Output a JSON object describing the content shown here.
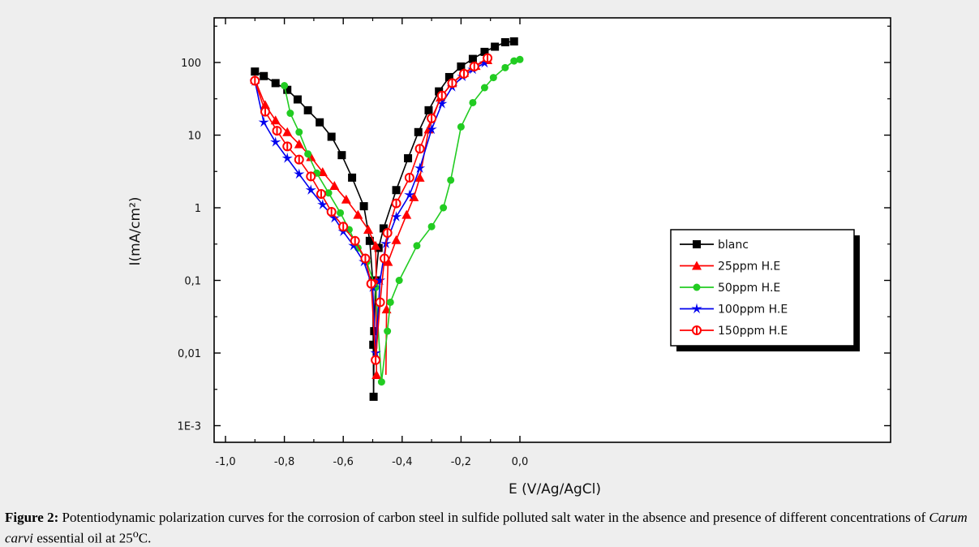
{
  "caption": {
    "label": "Figure 2:",
    "text_1": " Potentiodynamic polarization curves for the corrosion of carbon steel in sulfide polluted salt water in the absence and presence of different concentrations of ",
    "italic": "Carum carvi",
    "text_2": " essential oil at 25",
    "superscript": "o",
    "text_3": "C."
  },
  "chart_data": {
    "type": "line",
    "xlabel": "E (V/Ag/AgCl)",
    "ylabel": "I(mA/cm²)",
    "xlim": [
      -1.0,
      0.05
    ],
    "ylim": [
      0.0005,
      400
    ],
    "yscale": "log",
    "x_ticks": [
      -1.0,
      -0.8,
      -0.6,
      -0.4,
      -0.2,
      0.0
    ],
    "x_tick_labels": [
      "-1,0",
      "-0,8",
      "-0,6",
      "-0,4",
      "-0,2",
      "0,0"
    ],
    "y_ticks": [
      0.001,
      0.01,
      0.1,
      1,
      10,
      100
    ],
    "y_tick_labels": [
      "1E-3",
      "0,01",
      "0,1",
      "1",
      "10",
      "100"
    ],
    "legend_position": "right",
    "series": [
      {
        "name": "blanc",
        "color": "#000000",
        "marker": "square",
        "cathodic": [
          [
            -0.9,
            75
          ],
          [
            -0.87,
            65
          ],
          [
            -0.83,
            52
          ],
          [
            -0.79,
            42
          ],
          [
            -0.755,
            31
          ],
          [
            -0.72,
            22
          ],
          [
            -0.68,
            15
          ],
          [
            -0.64,
            9.5
          ],
          [
            -0.605,
            5.3
          ],
          [
            -0.57,
            2.6
          ],
          [
            -0.53,
            1.05
          ],
          [
            -0.51,
            0.35
          ],
          [
            -0.5,
            0.1
          ],
          [
            -0.498,
            0.013
          ],
          [
            -0.497,
            0.0025
          ]
        ],
        "anodic": [
          [
            -0.497,
            0.0025
          ],
          [
            -0.495,
            0.02
          ],
          [
            -0.49,
            0.1
          ],
          [
            -0.48,
            0.28
          ],
          [
            -0.463,
            0.52
          ],
          [
            -0.42,
            1.75
          ],
          [
            -0.38,
            4.8
          ],
          [
            -0.345,
            11
          ],
          [
            -0.31,
            22
          ],
          [
            -0.275,
            40
          ],
          [
            -0.24,
            63
          ],
          [
            -0.2,
            88
          ],
          [
            -0.16,
            112
          ],
          [
            -0.12,
            140
          ],
          [
            -0.085,
            165
          ],
          [
            -0.05,
            190
          ],
          [
            -0.02,
            195
          ]
        ]
      },
      {
        "name": "25ppm H.E",
        "color": "#ff0000",
        "marker": "triangle",
        "cathodic": [
          [
            -0.9,
            58
          ],
          [
            -0.865,
            26
          ],
          [
            -0.83,
            16
          ],
          [
            -0.79,
            11
          ],
          [
            -0.75,
            7.5
          ],
          [
            -0.71,
            5
          ],
          [
            -0.67,
            3.1
          ],
          [
            -0.63,
            2
          ],
          [
            -0.59,
            1.3
          ],
          [
            -0.55,
            0.8
          ],
          [
            -0.515,
            0.5
          ],
          [
            -0.49,
            0.3
          ],
          [
            -0.488,
            0.1
          ],
          [
            -0.487,
            0.005
          ]
        ],
        "anodic": [
          [
            -0.455,
            0.005
          ],
          [
            -0.453,
            0.04
          ],
          [
            -0.448,
            0.18
          ],
          [
            -0.42,
            0.36
          ],
          [
            -0.385,
            0.8
          ],
          [
            -0.36,
            1.4
          ],
          [
            -0.34,
            2.6
          ],
          [
            -0.31,
            12
          ],
          [
            -0.27,
            33
          ],
          [
            -0.23,
            52
          ],
          [
            -0.19,
            72
          ],
          [
            -0.15,
            90
          ],
          [
            -0.11,
            108
          ]
        ]
      },
      {
        "name": "50ppm H.E",
        "color": "#22cc22",
        "marker": "diamond",
        "cathodic": [
          [
            -0.8,
            48
          ],
          [
            -0.78,
            20
          ],
          [
            -0.75,
            11
          ],
          [
            -0.72,
            5.5
          ],
          [
            -0.69,
            3
          ],
          [
            -0.65,
            1.6
          ],
          [
            -0.61,
            0.85
          ],
          [
            -0.58,
            0.5
          ],
          [
            -0.55,
            0.28
          ],
          [
            -0.52,
            0.18
          ],
          [
            -0.49,
            0.08
          ],
          [
            -0.47,
            0.004
          ]
        ],
        "anodic": [
          [
            -0.47,
            0.004
          ],
          [
            -0.45,
            0.02
          ],
          [
            -0.44,
            0.05
          ],
          [
            -0.41,
            0.1
          ],
          [
            -0.35,
            0.3
          ],
          [
            -0.3,
            0.55
          ],
          [
            -0.26,
            1
          ],
          [
            -0.235,
            2.4
          ],
          [
            -0.2,
            13
          ],
          [
            -0.16,
            28
          ],
          [
            -0.12,
            45
          ],
          [
            -0.09,
            62
          ],
          [
            -0.05,
            85
          ],
          [
            -0.02,
            105
          ],
          [
            0.0,
            110
          ]
        ]
      },
      {
        "name": "100ppm H.E",
        "color": "#0000ee",
        "marker": "star",
        "cathodic": [
          [
            -0.9,
            55
          ],
          [
            -0.87,
            15
          ],
          [
            -0.83,
            8
          ],
          [
            -0.79,
            4.8
          ],
          [
            -0.75,
            2.9
          ],
          [
            -0.71,
            1.75
          ],
          [
            -0.67,
            1.1
          ],
          [
            -0.63,
            0.72
          ],
          [
            -0.6,
            0.47
          ],
          [
            -0.565,
            0.3
          ],
          [
            -0.53,
            0.18
          ],
          [
            -0.5,
            0.08
          ],
          [
            -0.49,
            0.01
          ]
        ],
        "anodic": [
          [
            -0.49,
            0.01
          ],
          [
            -0.475,
            0.1
          ],
          [
            -0.455,
            0.32
          ],
          [
            -0.42,
            0.75
          ],
          [
            -0.375,
            1.5
          ],
          [
            -0.34,
            3.5
          ],
          [
            -0.3,
            12
          ],
          [
            -0.265,
            27
          ],
          [
            -0.23,
            46
          ],
          [
            -0.195,
            64
          ],
          [
            -0.16,
            80
          ],
          [
            -0.12,
            98
          ]
        ]
      },
      {
        "name": "150ppm H.E",
        "color": "#ff0000",
        "marker": "circle-half",
        "cathodic": [
          [
            -0.9,
            56
          ],
          [
            -0.865,
            21
          ],
          [
            -0.825,
            11.5
          ],
          [
            -0.79,
            7
          ],
          [
            -0.75,
            4.6
          ],
          [
            -0.71,
            2.7
          ],
          [
            -0.675,
            1.55
          ],
          [
            -0.64,
            0.88
          ],
          [
            -0.6,
            0.55
          ],
          [
            -0.56,
            0.35
          ],
          [
            -0.525,
            0.2
          ],
          [
            -0.505,
            0.09
          ],
          [
            -0.49,
            0.008
          ]
        ],
        "anodic": [
          [
            -0.49,
            0.008
          ],
          [
            -0.475,
            0.05
          ],
          [
            -0.46,
            0.2
          ],
          [
            -0.45,
            0.45
          ],
          [
            -0.42,
            1.15
          ],
          [
            -0.375,
            2.6
          ],
          [
            -0.34,
            6.5
          ],
          [
            -0.3,
            17
          ],
          [
            -0.265,
            35
          ],
          [
            -0.23,
            52
          ],
          [
            -0.19,
            70
          ],
          [
            -0.155,
            88
          ],
          [
            -0.11,
            115
          ]
        ]
      }
    ]
  }
}
